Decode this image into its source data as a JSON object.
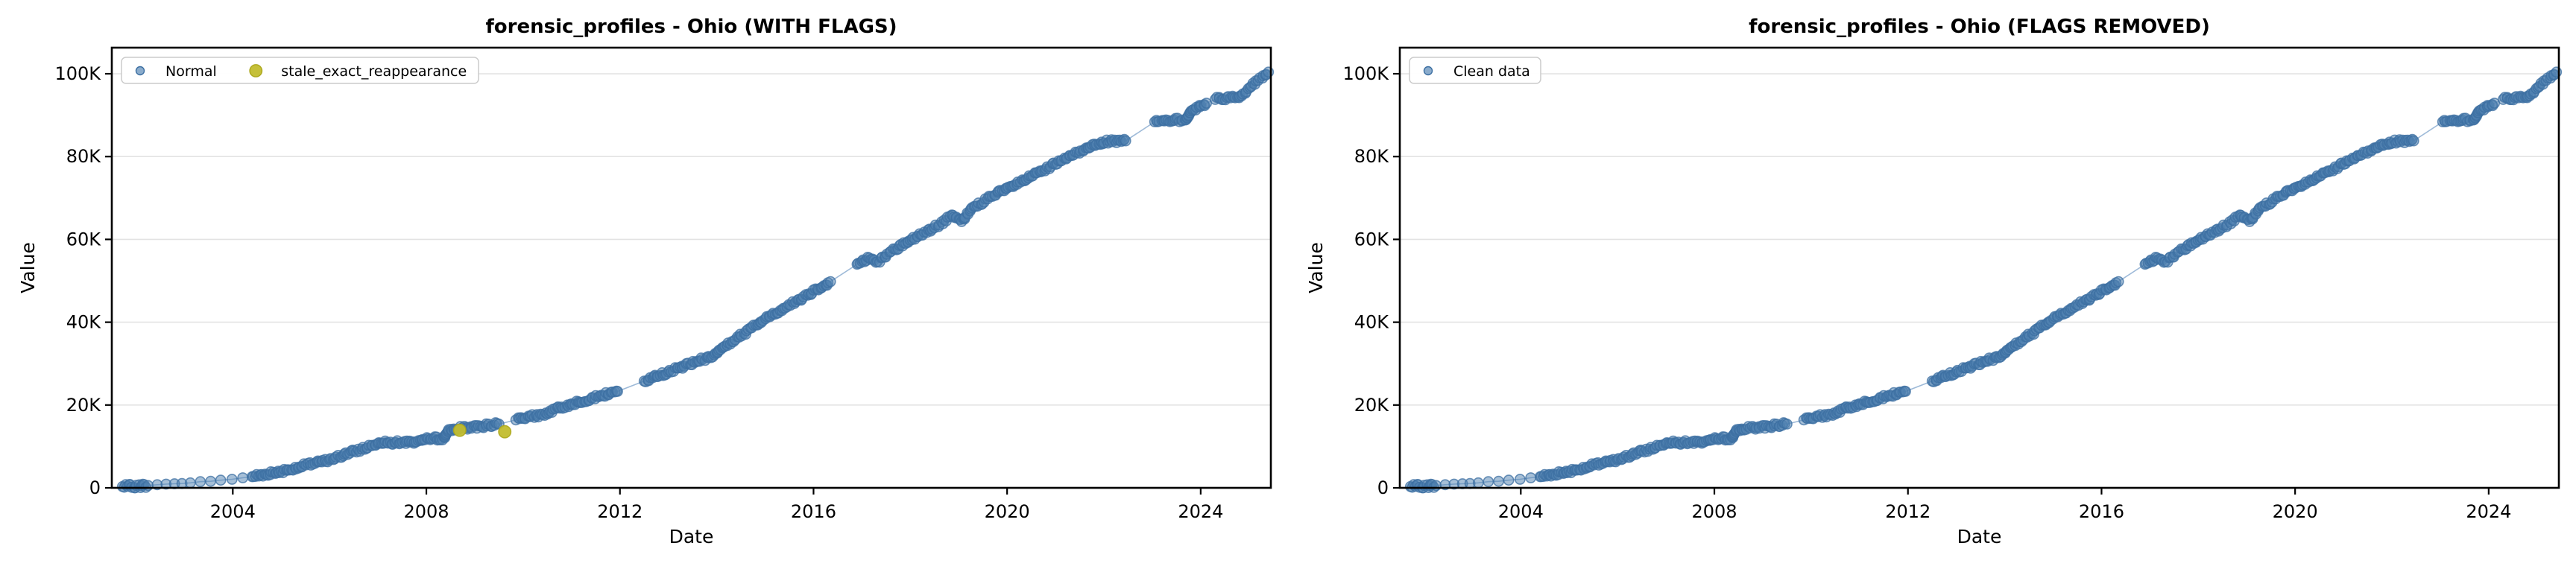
{
  "style": {
    "background": "#ffffff",
    "point_fill": "#4d7fb0",
    "point_stroke": "#3c6fa2",
    "point_opacity": 0.5,
    "trend_line_color": "#94b2d4",
    "flag_fill": "#c2bd2e",
    "flag_stroke": "#aca71c",
    "grid_color": "#e3e3e3",
    "frame_color": "#000000",
    "text_color": "#000000",
    "legend_border": "#cccccc",
    "legend_background": "#ffffff"
  },
  "chart_data": {
    "type": "scatter",
    "grid": "horizontal gridlines only",
    "legend_position": "upper left",
    "x_axis": {
      "label": "Date",
      "ticks": [
        2004,
        2008,
        2012,
        2016,
        2020,
        2024
      ],
      "range": [
        2001.5,
        2025.45
      ]
    },
    "y_axis": {
      "label": "Value",
      "tick_labels": [
        "0",
        "20K",
        "40K",
        "60K",
        "80K",
        "100K"
      ],
      "tick_values": [
        0,
        20000,
        40000,
        60000,
        80000,
        100000
      ],
      "range": [
        0,
        106300
      ]
    },
    "shared_trend_anchors": {
      "format": "[year, value_in_thousands, segment_style_to_next_anchor] d=dense band, s=sparse dots, g=gap line only, j=vertical jump cluster, e=end",
      "points": [
        [
          2001.72,
          0.3,
          "d"
        ],
        [
          2002.25,
          0.55,
          "s"
        ],
        [
          2002.95,
          1.05,
          "s"
        ],
        [
          2003.75,
          1.85,
          "s"
        ],
        [
          2004.4,
          2.7,
          "d"
        ],
        [
          2005.0,
          4.0,
          "d"
        ],
        [
          2006.0,
          6.8,
          "d"
        ],
        [
          2007.0,
          10.7,
          "d"
        ],
        [
          2007.15,
          11.3,
          "d"
        ],
        [
          2007.35,
          10.9,
          "d"
        ],
        [
          2007.7,
          11.1,
          "d"
        ],
        [
          2008.1,
          11.85,
          "d"
        ],
        [
          2008.38,
          12.1,
          "j"
        ],
        [
          2008.46,
          14.05,
          "d"
        ],
        [
          2009.5,
          15.4,
          "g"
        ],
        [
          2009.85,
          16.4,
          "d"
        ],
        [
          2010.4,
          17.7,
          "d"
        ],
        [
          2011.0,
          20.3,
          "d"
        ],
        [
          2011.95,
          23.3,
          "g"
        ],
        [
          2012.5,
          25.8,
          "d"
        ],
        [
          2013.0,
          28.0,
          "d"
        ],
        [
          2013.55,
          30.3,
          "d"
        ],
        [
          2013.95,
          32.1,
          "j"
        ],
        [
          2014.08,
          33.4,
          "d"
        ],
        [
          2014.9,
          40.0,
          "d"
        ],
        [
          2015.7,
          45.5,
          "d"
        ],
        [
          2016.35,
          49.8,
          "g"
        ],
        [
          2016.9,
          54.0,
          "d"
        ],
        [
          2017.15,
          55.5,
          "d"
        ],
        [
          2017.32,
          54.6,
          "d"
        ],
        [
          2017.6,
          57.1,
          "d"
        ],
        [
          2018.0,
          59.8,
          "d"
        ],
        [
          2018.5,
          62.8,
          "d"
        ],
        [
          2018.88,
          65.8,
          "d"
        ],
        [
          2019.06,
          64.3,
          "d"
        ],
        [
          2019.25,
          67.3,
          "d"
        ],
        [
          2019.6,
          69.8,
          "d"
        ],
        [
          2020.1,
          72.8,
          "d"
        ],
        [
          2020.8,
          77.0,
          "d"
        ],
        [
          2021.35,
          80.3,
          "d"
        ],
        [
          2021.8,
          83.0,
          "d"
        ],
        [
          2021.95,
          83.5,
          "d"
        ],
        [
          2022.45,
          83.8,
          "g"
        ],
        [
          2023.05,
          88.4,
          "d"
        ],
        [
          2023.7,
          88.95,
          "j"
        ],
        [
          2023.8,
          91.0,
          "d"
        ],
        [
          2024.12,
          92.9,
          "g"
        ],
        [
          2024.3,
          93.8,
          "d"
        ],
        [
          2024.85,
          94.7,
          "d"
        ],
        [
          2025.02,
          96.7,
          "d"
        ],
        [
          2025.4,
          100.4,
          "e"
        ]
      ]
    },
    "subplots": [
      {
        "title": "forensic_profiles - Ohio (WITH FLAGS)",
        "series": [
          {
            "name": "Normal",
            "marker_color": "#4d7fb0",
            "data": "shared_trend_anchors"
          },
          {
            "name": "stale_exact_reappearance",
            "marker_color": "#c2bd2e",
            "points_year_value": [
              [
                2008.69,
                13900
              ],
              [
                2009.62,
                13550
              ]
            ]
          }
        ]
      },
      {
        "title": "forensic_profiles - Ohio (FLAGS REMOVED)",
        "series": [
          {
            "name": "Clean data",
            "marker_color": "#4d7fb0",
            "data": "shared_trend_anchors"
          }
        ]
      }
    ]
  }
}
